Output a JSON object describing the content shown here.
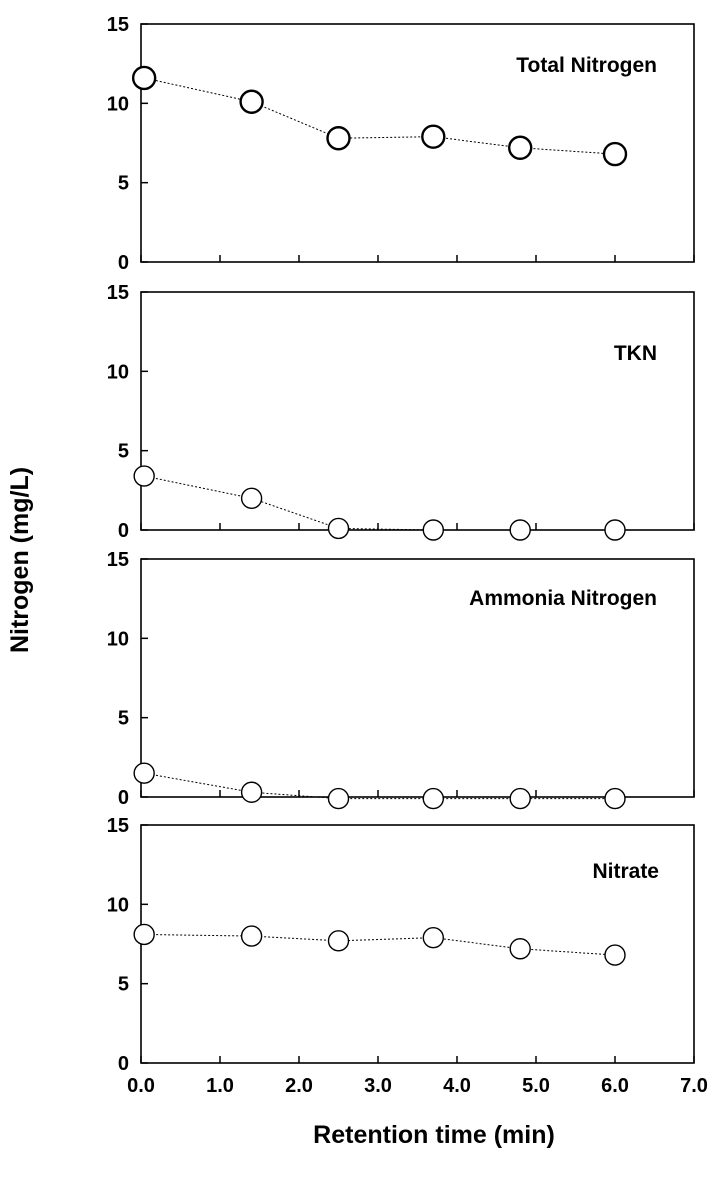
{
  "chart_data": {
    "type": "line",
    "xlabel": "Retention time (min)",
    "ylabel": "Nitrogen (mg/L)",
    "xlim": [
      0,
      7
    ],
    "x_ticks": [
      "0.0",
      "1.0",
      "2.0",
      "3.0",
      "4.0",
      "5.0",
      "6.0",
      "7.0"
    ],
    "grid": false,
    "panels": [
      {
        "title": "Total Nitrogen",
        "ylim": [
          0,
          15
        ],
        "y_ticks": [
          "0",
          "5",
          "10",
          "15"
        ],
        "x": [
          0.04,
          1.4,
          2.5,
          3.7,
          4.8,
          6.0
        ],
        "y": [
          11.6,
          10.1,
          7.8,
          7.9,
          7.2,
          6.8
        ],
        "marker": "large-open-circle"
      },
      {
        "title": "TKN",
        "ylim": [
          0,
          15
        ],
        "y_ticks": [
          "0",
          "5",
          "10",
          "15"
        ],
        "x": [
          0.04,
          1.4,
          2.5,
          3.7,
          4.8,
          6.0
        ],
        "y": [
          3.4,
          2.0,
          0.1,
          0.0,
          0.0,
          0.0
        ],
        "marker": "open-circle"
      },
      {
        "title": "Ammonia Nitrogen",
        "ylim": [
          0,
          15
        ],
        "y_ticks": [
          "0",
          "5",
          "10",
          "15"
        ],
        "x": [
          0.04,
          1.4,
          2.5,
          3.7,
          4.8,
          6.0
        ],
        "y": [
          1.5,
          0.3,
          -0.1,
          -0.1,
          -0.1,
          -0.1
        ],
        "marker": "open-circle"
      },
      {
        "title": "Nitrate",
        "ylim": [
          0,
          15
        ],
        "y_ticks": [
          "0",
          "5",
          "10",
          "15"
        ],
        "x": [
          0.04,
          1.4,
          2.5,
          3.7,
          4.8,
          6.0
        ],
        "y": [
          8.1,
          8.0,
          7.7,
          7.9,
          7.2,
          6.8
        ],
        "marker": "open-circle"
      }
    ]
  }
}
